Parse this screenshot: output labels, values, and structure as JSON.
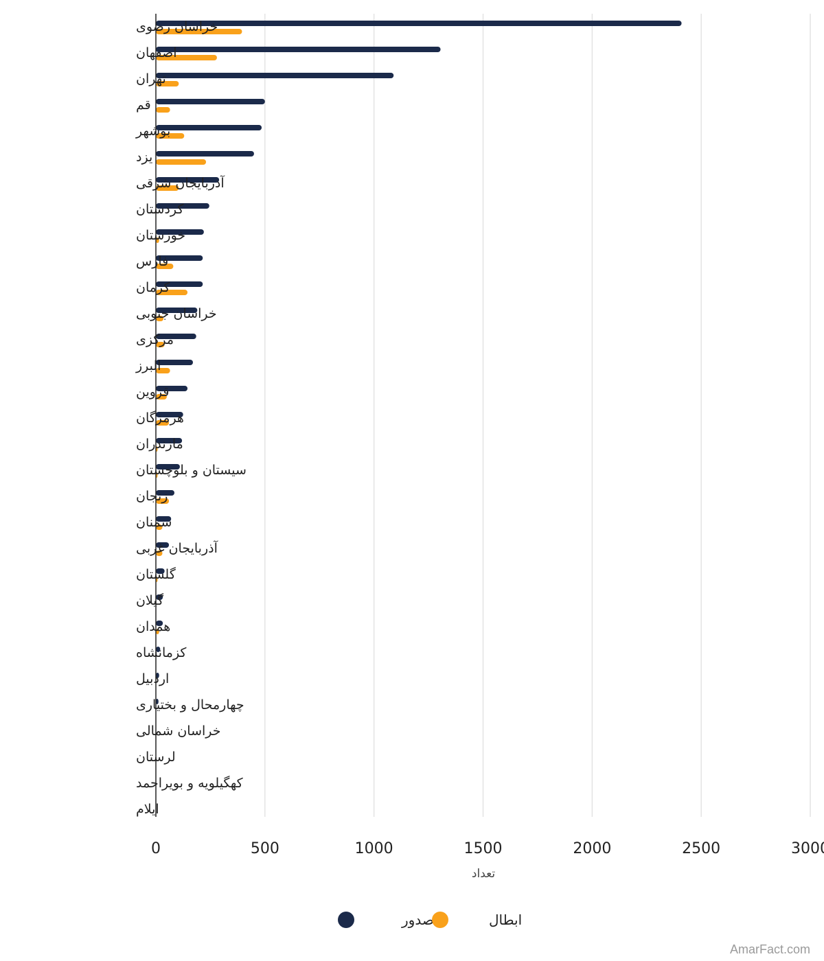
{
  "chart_data": {
    "type": "bar",
    "orientation": "horizontal",
    "categories": [
      "خراسان رضوی",
      "اصفهان",
      "تهران",
      "قم",
      "بوشهر",
      "یزد",
      "آذربایجان شرقی",
      "کردستان",
      "خوزستان",
      "فارس",
      "کرمان",
      "خراسان جنوبی",
      "مرکزی",
      "البرز",
      "قزوین",
      "هرمزگان",
      "مازندران",
      "سیستان و بلوچستان",
      "زنجان",
      "سمنان",
      "آذربایجان غربی",
      "گلستان",
      "گیلان",
      "همدان",
      "کزمانشاه",
      "اردبیل",
      "چهارمحال و بختیاری",
      "خراسان شمالی",
      "لرستان",
      "کهگیلویه و بویراحمد",
      "ایلام"
    ],
    "series": [
      {
        "name": "صدور",
        "color": "#1b2a4a",
        "values": [
          2410,
          1305,
          1090,
          500,
          485,
          450,
          290,
          245,
          220,
          215,
          215,
          190,
          185,
          170,
          145,
          125,
          120,
          110,
          85,
          70,
          60,
          40,
          32,
          32,
          20,
          15,
          12,
          0,
          0,
          0,
          0
        ]
      },
      {
        "name": "ابطال",
        "color": "#f9a11b",
        "values": [
          395,
          280,
          105,
          65,
          130,
          230,
          105,
          0,
          15,
          80,
          145,
          35,
          40,
          65,
          50,
          60,
          8,
          8,
          60,
          30,
          30,
          8,
          0,
          15,
          0,
          0,
          0,
          0,
          0,
          0,
          0
        ]
      }
    ],
    "xlim": [
      0,
      3000
    ],
    "xticks": [
      0,
      500,
      1000,
      1500,
      2000,
      2500,
      3000
    ],
    "xlabel": "تعداد",
    "title": "",
    "ylabel": "",
    "grid": true,
    "legend": "bottom-center"
  },
  "watermark": "AmarFact.com"
}
